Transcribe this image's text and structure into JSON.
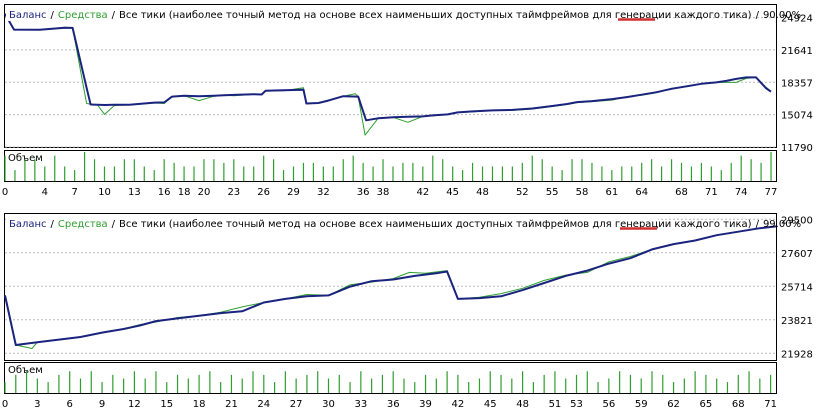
{
  "chart_data": [
    {
      "type": "line",
      "legend": {
        "balance_label": "Баланс",
        "equity_label": "Средства",
        "separator": "/",
        "description": "Все тики (наиболее точный метод на основе всех наименьших доступных таймфреймов для генерации каждого тика)",
        "quality": "90.00%"
      },
      "volume_label": "Объем",
      "x_ticks": [
        "0",
        "4",
        "7",
        "10",
        "13",
        "16",
        "18",
        "20",
        "23",
        "26",
        "29",
        "32",
        "36",
        "38",
        "42",
        "45",
        "48",
        "52",
        "55",
        "58",
        "61",
        "64",
        "68",
        "71",
        "74",
        "77"
      ],
      "y_ticks": [
        "24924",
        "21641",
        "18357",
        "15074",
        "11790"
      ],
      "ylim": [
        11790,
        26200
      ],
      "xlim": [
        0,
        77.5
      ],
      "series": [
        {
          "name": "Баланс",
          "color": "#1a237e",
          "points": [
            [
              0,
              25300
            ],
            [
              0.9,
              23700
            ],
            [
              3.5,
              23680
            ],
            [
              6,
              23900
            ],
            [
              6.8,
              23880
            ],
            [
              8.2,
              17800
            ],
            [
              8.6,
              16100
            ],
            [
              10,
              16050
            ],
            [
              11,
              16070
            ],
            [
              12.5,
              16080
            ],
            [
              15,
              16300
            ],
            [
              16,
              16320
            ],
            [
              16.8,
              16900
            ],
            [
              18,
              17000
            ],
            [
              19.5,
              16950
            ],
            [
              21,
              17000
            ],
            [
              22,
              17050
            ],
            [
              23,
              17080
            ],
            [
              25,
              17150
            ],
            [
              25.8,
              17120
            ],
            [
              26.2,
              17500
            ],
            [
              28,
              17550
            ],
            [
              30,
              17600
            ],
            [
              30.3,
              16200
            ],
            [
              31.5,
              16250
            ],
            [
              32.5,
              16500
            ],
            [
              34,
              16950
            ],
            [
              35.5,
              16900
            ],
            [
              36.3,
              14500
            ],
            [
              37.5,
              14700
            ],
            [
              39,
              14800
            ],
            [
              40.5,
              14850
            ],
            [
              42,
              14900
            ],
            [
              43,
              15000
            ],
            [
              44.5,
              15100
            ],
            [
              45.5,
              15300
            ],
            [
              47,
              15400
            ],
            [
              49,
              15500
            ],
            [
              51,
              15550
            ],
            [
              53,
              15700
            ],
            [
              55,
              15950
            ],
            [
              56.5,
              16150
            ],
            [
              57.5,
              16350
            ],
            [
              59,
              16450
            ],
            [
              61,
              16650
            ],
            [
              62.5,
              16850
            ],
            [
              64,
              17100
            ],
            [
              65.5,
              17350
            ],
            [
              67,
              17700
            ],
            [
              68.5,
              17950
            ],
            [
              70,
              18200
            ],
            [
              71.5,
              18350
            ],
            [
              72.5,
              18500
            ],
            [
              73.5,
              18700
            ],
            [
              74.5,
              18850
            ],
            [
              75.5,
              18850
            ],
            [
              76.5,
              17750
            ],
            [
              77,
              17400
            ]
          ]
        },
        {
          "name": "Средства",
          "color": "#2e9e2e",
          "points": [
            [
              0,
              25300
            ],
            [
              0.9,
              23700
            ],
            [
              3.5,
              23680
            ],
            [
              6,
              23950
            ],
            [
              6.8,
              23880
            ],
            [
              8.2,
              16200
            ],
            [
              9.3,
              16050
            ],
            [
              10,
              15100
            ],
            [
              11,
              16000
            ],
            [
              12.5,
              16050
            ],
            [
              15,
              16250
            ],
            [
              16,
              16200
            ],
            [
              16.8,
              16900
            ],
            [
              18,
              17000
            ],
            [
              19.5,
              16500
            ],
            [
              21,
              16950
            ],
            [
              22,
              17050
            ],
            [
              23,
              17000
            ],
            [
              25,
              17150
            ],
            [
              25.8,
              17100
            ],
            [
              26.2,
              17500
            ],
            [
              28,
              17500
            ],
            [
              30,
              17800
            ],
            [
              30.3,
              16200
            ],
            [
              31.5,
              16250
            ],
            [
              32.5,
              16550
            ],
            [
              34,
              16950
            ],
            [
              35.2,
              17200
            ],
            [
              35.5,
              16900
            ],
            [
              36.2,
              13000
            ],
            [
              37.5,
              14700
            ],
            [
              39,
              14800
            ],
            [
              40.5,
              14300
            ],
            [
              42,
              14900
            ],
            [
              43,
              14950
            ],
            [
              44.5,
              15100
            ],
            [
              45.5,
              15300
            ],
            [
              47,
              15350
            ],
            [
              49,
              15500
            ],
            [
              51,
              15500
            ],
            [
              53,
              15650
            ],
            [
              55,
              15900
            ],
            [
              56.5,
              16100
            ],
            [
              57.5,
              16300
            ],
            [
              59,
              16400
            ],
            [
              61,
              16550
            ],
            [
              62.5,
              16900
            ],
            [
              64,
              17050
            ],
            [
              65.5,
              17300
            ],
            [
              67,
              17750
            ],
            [
              68.5,
              17900
            ],
            [
              70,
              18200
            ],
            [
              71.5,
              18350
            ],
            [
              72.5,
              18350
            ],
            [
              73.5,
              18350
            ],
            [
              74.5,
              18750
            ],
            [
              75.5,
              18850
            ],
            [
              76.5,
              17850
            ],
            [
              77,
              17450
            ]
          ]
        }
      ],
      "volume": [
        7,
        3,
        6,
        6,
        4,
        7,
        4,
        3,
        8,
        6,
        4,
        4,
        6,
        6,
        4,
        3,
        6,
        5,
        4,
        4,
        6,
        6,
        5,
        6,
        4,
        4,
        7,
        6,
        3,
        4,
        5,
        5,
        4,
        4,
        6,
        7,
        5,
        4,
        6,
        4,
        5,
        5,
        4,
        7,
        6,
        4,
        3,
        5,
        4,
        4,
        4,
        4,
        5,
        7,
        6,
        4,
        3,
        6,
        6,
        5,
        4,
        3,
        4,
        4,
        5,
        6,
        4,
        6,
        5,
        4,
        5,
        4,
        3,
        5,
        7,
        6,
        5,
        8
      ]
    },
    {
      "type": "line",
      "legend": {
        "balance_label": "Баланс",
        "equity_label": "Средства",
        "separator": "/",
        "description": "Все тики (наиболее точный метод на основе всех наименьших доступных таймфреймов для генерации каждого тика)",
        "quality": "99.00%"
      },
      "volume_label": "Объем",
      "x_ticks": [
        "0",
        "3",
        "6",
        "9",
        "12",
        "15",
        "18",
        "21",
        "24",
        "27",
        "30",
        "33",
        "36",
        "39",
        "42",
        "45",
        "48",
        "51",
        "53",
        "56",
        "59",
        "62",
        "65",
        "68",
        "71"
      ],
      "y_ticks": [
        "29500",
        "27607",
        "25714",
        "23821",
        "21928"
      ],
      "ylim": [
        21550,
        29800
      ],
      "xlim": [
        0,
        71.5
      ],
      "series": [
        {
          "name": "Баланс",
          "color": "#1a237e",
          "points": [
            [
              0,
              25200
            ],
            [
              1,
              22400
            ],
            [
              3,
              22550
            ],
            [
              5,
              22700
            ],
            [
              7,
              22850
            ],
            [
              9,
              23100
            ],
            [
              11,
              23300
            ],
            [
              12.5,
              23500
            ],
            [
              14,
              23750
            ],
            [
              16,
              23900
            ],
            [
              18,
              24050
            ],
            [
              20,
              24200
            ],
            [
              22,
              24300
            ],
            [
              24,
              24800
            ],
            [
              26,
              25000
            ],
            [
              28,
              25150
            ],
            [
              30,
              25200
            ],
            [
              32,
              25700
            ],
            [
              34,
              26000
            ],
            [
              36,
              26100
            ],
            [
              38,
              26300
            ],
            [
              40,
              26450
            ],
            [
              41,
              26550
            ],
            [
              42,
              25000
            ],
            [
              44,
              25050
            ],
            [
              46,
              25150
            ],
            [
              48,
              25500
            ],
            [
              50,
              25900
            ],
            [
              52,
              26300
            ],
            [
              54,
              26600
            ],
            [
              56,
              27000
            ],
            [
              58,
              27300
            ],
            [
              60,
              27800
            ],
            [
              62,
              28100
            ],
            [
              64,
              28300
            ],
            [
              66,
              28600
            ],
            [
              68,
              28800
            ],
            [
              70,
              29000
            ],
            [
              71.5,
              29100
            ]
          ]
        },
        {
          "name": "Средства",
          "color": "#2e9e2e",
          "points": [
            [
              0,
              25200
            ],
            [
              1,
              22400
            ],
            [
              2.5,
              22200
            ],
            [
              3,
              22550
            ],
            [
              5,
              22700
            ],
            [
              7,
              22850
            ],
            [
              9,
              23100
            ],
            [
              11,
              23300
            ],
            [
              12.5,
              23550
            ],
            [
              14,
              23700
            ],
            [
              16,
              23950
            ],
            [
              18,
              24050
            ],
            [
              20,
              24250
            ],
            [
              22,
              24550
            ],
            [
              24,
              24800
            ],
            [
              26,
              25000
            ],
            [
              28,
              25250
            ],
            [
              30,
              25200
            ],
            [
              32,
              25800
            ],
            [
              34,
              25950
            ],
            [
              36,
              26150
            ],
            [
              37.5,
              26500
            ],
            [
              39,
              26450
            ],
            [
              41,
              26600
            ],
            [
              42,
              25000
            ],
            [
              44,
              25100
            ],
            [
              46,
              25300
            ],
            [
              48,
              25600
            ],
            [
              50,
              26050
            ],
            [
              52,
              26350
            ],
            [
              54,
              26500
            ],
            [
              56,
              27100
            ],
            [
              58,
              27400
            ],
            [
              60,
              27800
            ],
            [
              62,
              28100
            ],
            [
              64,
              28300
            ],
            [
              66,
              28600
            ],
            [
              68,
              28800
            ],
            [
              70,
              29000
            ],
            [
              71.5,
              29100
            ]
          ]
        }
      ],
      "volume": [
        3,
        5,
        6,
        4,
        3,
        5,
        6,
        4,
        6,
        3,
        5,
        4,
        6,
        4,
        6,
        3,
        5,
        4,
        5,
        6,
        3,
        5,
        4,
        6,
        5,
        3,
        6,
        4,
        5,
        6,
        4,
        5,
        3,
        6,
        4,
        5,
        6,
        4,
        3,
        5,
        4,
        6,
        5,
        3,
        4,
        6,
        5,
        4,
        6,
        3,
        5,
        6,
        4,
        5,
        6,
        3,
        4,
        6,
        5,
        4,
        6,
        5,
        3,
        4,
        6,
        5,
        4,
        3,
        5,
        6,
        4,
        5
      ]
    }
  ]
}
